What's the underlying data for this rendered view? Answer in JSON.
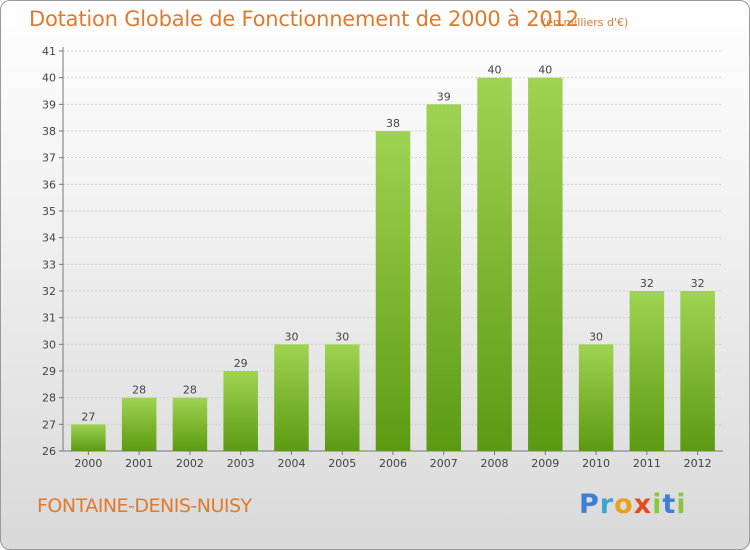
{
  "header": {
    "title": "Dotation Globale de Fonctionnement de 2000 à 2012",
    "unit": "(en milliers d'€)"
  },
  "footer": {
    "commune": "FONTAINE-DENIS-NUISY",
    "logo": "Proxiti"
  },
  "chart_data": {
    "type": "bar",
    "title": "Dotation Globale de Fonctionnement de 2000 à 2012",
    "subtitle": "(en milliers d'€)",
    "categories": [
      "2000",
      "2001",
      "2002",
      "2003",
      "2004",
      "2005",
      "2006",
      "2007",
      "2008",
      "2009",
      "2010",
      "2011",
      "2012"
    ],
    "values": [
      27,
      28,
      28,
      29,
      30,
      30,
      38,
      39,
      40,
      40,
      30,
      32,
      32
    ],
    "ylim": [
      26,
      41
    ],
    "yticks": [
      26,
      27,
      28,
      29,
      30,
      31,
      32,
      33,
      34,
      35,
      36,
      37,
      38,
      39,
      40,
      41
    ],
    "grid": true,
    "bar_color": "#7cb733",
    "legend": "none"
  }
}
